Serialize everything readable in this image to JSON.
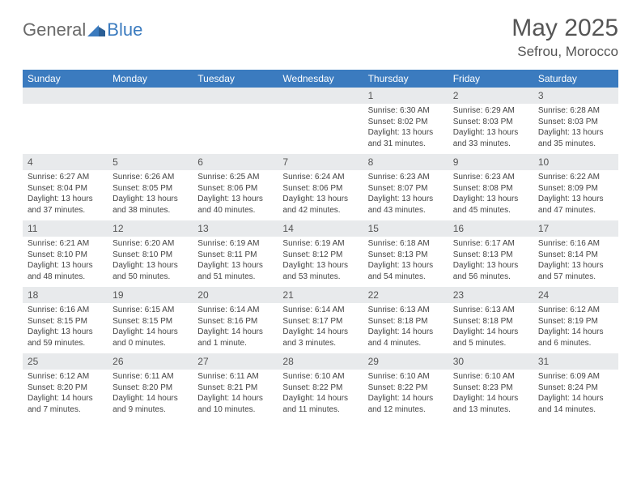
{
  "logo": {
    "text1": "General",
    "text2": "Blue"
  },
  "title": "May 2025",
  "location": "Sefrou, Morocco",
  "colors": {
    "header_blue": "#3b7bbf",
    "daynum_bg": "#e8eaec",
    "text_gray": "#555555",
    "body_text": "#444444",
    "logo_gray": "#6a6a6a"
  },
  "fonts": {
    "title_size": 30,
    "location_size": 17,
    "weekday_size": 12,
    "daynum_size": 12,
    "body_size": 10
  },
  "weekdays": [
    "Sunday",
    "Monday",
    "Tuesday",
    "Wednesday",
    "Thursday",
    "Friday",
    "Saturday"
  ],
  "weeks": [
    [
      {
        "num": "",
        "sunrise": "",
        "sunset": "",
        "daylight": ""
      },
      {
        "num": "",
        "sunrise": "",
        "sunset": "",
        "daylight": ""
      },
      {
        "num": "",
        "sunrise": "",
        "sunset": "",
        "daylight": ""
      },
      {
        "num": "",
        "sunrise": "",
        "sunset": "",
        "daylight": ""
      },
      {
        "num": "1",
        "sunrise": "Sunrise: 6:30 AM",
        "sunset": "Sunset: 8:02 PM",
        "daylight": "Daylight: 13 hours and 31 minutes."
      },
      {
        "num": "2",
        "sunrise": "Sunrise: 6:29 AM",
        "sunset": "Sunset: 8:03 PM",
        "daylight": "Daylight: 13 hours and 33 minutes."
      },
      {
        "num": "3",
        "sunrise": "Sunrise: 6:28 AM",
        "sunset": "Sunset: 8:03 PM",
        "daylight": "Daylight: 13 hours and 35 minutes."
      }
    ],
    [
      {
        "num": "4",
        "sunrise": "Sunrise: 6:27 AM",
        "sunset": "Sunset: 8:04 PM",
        "daylight": "Daylight: 13 hours and 37 minutes."
      },
      {
        "num": "5",
        "sunrise": "Sunrise: 6:26 AM",
        "sunset": "Sunset: 8:05 PM",
        "daylight": "Daylight: 13 hours and 38 minutes."
      },
      {
        "num": "6",
        "sunrise": "Sunrise: 6:25 AM",
        "sunset": "Sunset: 8:06 PM",
        "daylight": "Daylight: 13 hours and 40 minutes."
      },
      {
        "num": "7",
        "sunrise": "Sunrise: 6:24 AM",
        "sunset": "Sunset: 8:06 PM",
        "daylight": "Daylight: 13 hours and 42 minutes."
      },
      {
        "num": "8",
        "sunrise": "Sunrise: 6:23 AM",
        "sunset": "Sunset: 8:07 PM",
        "daylight": "Daylight: 13 hours and 43 minutes."
      },
      {
        "num": "9",
        "sunrise": "Sunrise: 6:23 AM",
        "sunset": "Sunset: 8:08 PM",
        "daylight": "Daylight: 13 hours and 45 minutes."
      },
      {
        "num": "10",
        "sunrise": "Sunrise: 6:22 AM",
        "sunset": "Sunset: 8:09 PM",
        "daylight": "Daylight: 13 hours and 47 minutes."
      }
    ],
    [
      {
        "num": "11",
        "sunrise": "Sunrise: 6:21 AM",
        "sunset": "Sunset: 8:10 PM",
        "daylight": "Daylight: 13 hours and 48 minutes."
      },
      {
        "num": "12",
        "sunrise": "Sunrise: 6:20 AM",
        "sunset": "Sunset: 8:10 PM",
        "daylight": "Daylight: 13 hours and 50 minutes."
      },
      {
        "num": "13",
        "sunrise": "Sunrise: 6:19 AM",
        "sunset": "Sunset: 8:11 PM",
        "daylight": "Daylight: 13 hours and 51 minutes."
      },
      {
        "num": "14",
        "sunrise": "Sunrise: 6:19 AM",
        "sunset": "Sunset: 8:12 PM",
        "daylight": "Daylight: 13 hours and 53 minutes."
      },
      {
        "num": "15",
        "sunrise": "Sunrise: 6:18 AM",
        "sunset": "Sunset: 8:13 PM",
        "daylight": "Daylight: 13 hours and 54 minutes."
      },
      {
        "num": "16",
        "sunrise": "Sunrise: 6:17 AM",
        "sunset": "Sunset: 8:13 PM",
        "daylight": "Daylight: 13 hours and 56 minutes."
      },
      {
        "num": "17",
        "sunrise": "Sunrise: 6:16 AM",
        "sunset": "Sunset: 8:14 PM",
        "daylight": "Daylight: 13 hours and 57 minutes."
      }
    ],
    [
      {
        "num": "18",
        "sunrise": "Sunrise: 6:16 AM",
        "sunset": "Sunset: 8:15 PM",
        "daylight": "Daylight: 13 hours and 59 minutes."
      },
      {
        "num": "19",
        "sunrise": "Sunrise: 6:15 AM",
        "sunset": "Sunset: 8:15 PM",
        "daylight": "Daylight: 14 hours and 0 minutes."
      },
      {
        "num": "20",
        "sunrise": "Sunrise: 6:14 AM",
        "sunset": "Sunset: 8:16 PM",
        "daylight": "Daylight: 14 hours and 1 minute."
      },
      {
        "num": "21",
        "sunrise": "Sunrise: 6:14 AM",
        "sunset": "Sunset: 8:17 PM",
        "daylight": "Daylight: 14 hours and 3 minutes."
      },
      {
        "num": "22",
        "sunrise": "Sunrise: 6:13 AM",
        "sunset": "Sunset: 8:18 PM",
        "daylight": "Daylight: 14 hours and 4 minutes."
      },
      {
        "num": "23",
        "sunrise": "Sunrise: 6:13 AM",
        "sunset": "Sunset: 8:18 PM",
        "daylight": "Daylight: 14 hours and 5 minutes."
      },
      {
        "num": "24",
        "sunrise": "Sunrise: 6:12 AM",
        "sunset": "Sunset: 8:19 PM",
        "daylight": "Daylight: 14 hours and 6 minutes."
      }
    ],
    [
      {
        "num": "25",
        "sunrise": "Sunrise: 6:12 AM",
        "sunset": "Sunset: 8:20 PM",
        "daylight": "Daylight: 14 hours and 7 minutes."
      },
      {
        "num": "26",
        "sunrise": "Sunrise: 6:11 AM",
        "sunset": "Sunset: 8:20 PM",
        "daylight": "Daylight: 14 hours and 9 minutes."
      },
      {
        "num": "27",
        "sunrise": "Sunrise: 6:11 AM",
        "sunset": "Sunset: 8:21 PM",
        "daylight": "Daylight: 14 hours and 10 minutes."
      },
      {
        "num": "28",
        "sunrise": "Sunrise: 6:10 AM",
        "sunset": "Sunset: 8:22 PM",
        "daylight": "Daylight: 14 hours and 11 minutes."
      },
      {
        "num": "29",
        "sunrise": "Sunrise: 6:10 AM",
        "sunset": "Sunset: 8:22 PM",
        "daylight": "Daylight: 14 hours and 12 minutes."
      },
      {
        "num": "30",
        "sunrise": "Sunrise: 6:10 AM",
        "sunset": "Sunset: 8:23 PM",
        "daylight": "Daylight: 14 hours and 13 minutes."
      },
      {
        "num": "31",
        "sunrise": "Sunrise: 6:09 AM",
        "sunset": "Sunset: 8:24 PM",
        "daylight": "Daylight: 14 hours and 14 minutes."
      }
    ]
  ]
}
